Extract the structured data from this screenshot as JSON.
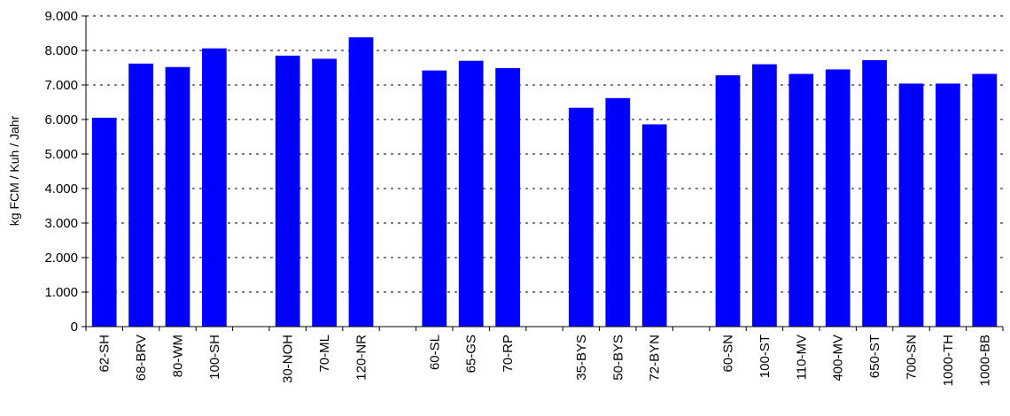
{
  "chart_data": {
    "type": "bar",
    "title": "",
    "xlabel": "",
    "ylabel": "kg FCM / Kuh / Jahr",
    "ylim": [
      0,
      9000
    ],
    "yticks": [
      0,
      1000,
      2000,
      3000,
      4000,
      5000,
      6000,
      7000,
      8000,
      9000
    ],
    "ytick_labels": [
      "0",
      "1.000",
      "2.000",
      "3.000",
      "4.000",
      "5.000",
      "6.000",
      "7.000",
      "8.000",
      "9.000"
    ],
    "grid": "horizontal dashed",
    "legend": "none",
    "bar_color": "#0000ff",
    "categories": [
      "62-SH",
      "68-BRV",
      "80-WM",
      "100-SH",
      "",
      "30-NOH",
      "70-ML",
      "120-NR",
      "",
      "60-SL",
      "65-GS",
      "70-RP",
      "",
      "35-BYS",
      "50-BYS",
      "72-BYN",
      "",
      "60-SN",
      "100-ST",
      "110-MV",
      "400-MV",
      "650-ST",
      "700-SN",
      "1000-TH",
      "1000-BB"
    ],
    "values": [
      6050,
      7620,
      7520,
      8060,
      null,
      7850,
      7760,
      8380,
      null,
      7420,
      7700,
      7490,
      null,
      6340,
      6620,
      5860,
      null,
      7280,
      7600,
      7320,
      7450,
      7720,
      7040,
      7040,
      7320
    ]
  }
}
